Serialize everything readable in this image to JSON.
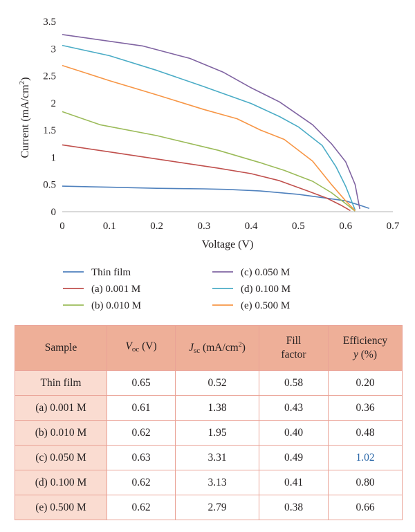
{
  "chart_data": {
    "type": "line",
    "xlabel": "Voltage (V)",
    "ylabel": "Current (mA/cm",
    "ylabel_sup": "2",
    "ylabel_close": ")",
    "xlim": [
      0,
      0.7
    ],
    "ylim": [
      0,
      3.5
    ],
    "xticks": [
      "0",
      "0.1",
      "0.2",
      "0.3",
      "0.4",
      "0.5",
      "0.6",
      "0.7"
    ],
    "yticks": [
      "0",
      "0.5",
      "1",
      "1.5",
      "2",
      "2.5",
      "3",
      "3.5"
    ],
    "grid": false,
    "legend_position": "bottom",
    "series": [
      {
        "name": "Thin film",
        "color": "#4f81bd",
        "points": [
          [
            0,
            0.47
          ],
          [
            0.1,
            0.45
          ],
          [
            0.2,
            0.43
          ],
          [
            0.3,
            0.42
          ],
          [
            0.35,
            0.41
          ],
          [
            0.42,
            0.38
          ],
          [
            0.5,
            0.32
          ],
          [
            0.55,
            0.26
          ],
          [
            0.6,
            0.2
          ],
          [
            0.63,
            0.12
          ],
          [
            0.65,
            0.06
          ]
        ]
      },
      {
        "name": "(a) 0.001 M",
        "color": "#c0504d",
        "points": [
          [
            0,
            1.23
          ],
          [
            0.1,
            1.1
          ],
          [
            0.2,
            0.97
          ],
          [
            0.33,
            0.8
          ],
          [
            0.4,
            0.7
          ],
          [
            0.46,
            0.57
          ],
          [
            0.52,
            0.38
          ],
          [
            0.56,
            0.25
          ],
          [
            0.59,
            0.12
          ],
          [
            0.61,
            0.02
          ]
        ]
      },
      {
        "name": "(b) 0.010 M",
        "color": "#9bbb59",
        "points": [
          [
            0,
            1.84
          ],
          [
            0.08,
            1.6
          ],
          [
            0.2,
            1.4
          ],
          [
            0.33,
            1.13
          ],
          [
            0.42,
            0.9
          ],
          [
            0.47,
            0.76
          ],
          [
            0.53,
            0.56
          ],
          [
            0.57,
            0.35
          ],
          [
            0.6,
            0.15
          ],
          [
            0.62,
            0.01
          ]
        ]
      },
      {
        "name": "(c) 0.050 M",
        "color": "#8064a2",
        "points": [
          [
            0,
            3.26
          ],
          [
            0.17,
            3.05
          ],
          [
            0.27,
            2.82
          ],
          [
            0.34,
            2.57
          ],
          [
            0.4,
            2.28
          ],
          [
            0.46,
            2.02
          ],
          [
            0.53,
            1.6
          ],
          [
            0.57,
            1.25
          ],
          [
            0.6,
            0.92
          ],
          [
            0.62,
            0.5
          ],
          [
            0.63,
            0.05
          ]
        ]
      },
      {
        "name": "(d) 0.100 M",
        "color": "#4bacc6",
        "points": [
          [
            0,
            3.06
          ],
          [
            0.1,
            2.87
          ],
          [
            0.2,
            2.6
          ],
          [
            0.3,
            2.3
          ],
          [
            0.4,
            1.99
          ],
          [
            0.46,
            1.75
          ],
          [
            0.5,
            1.56
          ],
          [
            0.55,
            1.22
          ],
          [
            0.58,
            0.82
          ],
          [
            0.6,
            0.47
          ],
          [
            0.62,
            0.03
          ]
        ]
      },
      {
        "name": "(e) 0.500 M",
        "color": "#f79646",
        "points": [
          [
            0,
            2.69
          ],
          [
            0.1,
            2.41
          ],
          [
            0.2,
            2.15
          ],
          [
            0.3,
            1.88
          ],
          [
            0.37,
            1.71
          ],
          [
            0.42,
            1.5
          ],
          [
            0.47,
            1.33
          ],
          [
            0.53,
            0.93
          ],
          [
            0.57,
            0.5
          ],
          [
            0.6,
            0.2
          ],
          [
            0.62,
            0.02
          ]
        ]
      }
    ]
  },
  "table": {
    "header": {
      "sample": "Sample",
      "voc_sym": "V",
      "voc_sub": "oc",
      "voc_unit": " (V)",
      "jsc_sym": "J",
      "jsc_sub": "sc",
      "jsc_unit": " (mA/cm",
      "jsc_sup": "2",
      "jsc_close": ")",
      "ff_line1": "Fill",
      "ff_line2": "factor",
      "eff_line1": "Efficiency",
      "eff_sym": "y",
      "eff_unit": " (%)"
    },
    "rows": [
      {
        "sample": "Thin film",
        "voc": "0.65",
        "jsc": "0.52",
        "ff": "0.58",
        "eff": "0.20"
      },
      {
        "sample": "(a) 0.001 M",
        "voc": "0.61",
        "jsc": "1.38",
        "ff": "0.43",
        "eff": "0.36"
      },
      {
        "sample": "(b) 0.010 M",
        "voc": "0.62",
        "jsc": "1.95",
        "ff": "0.40",
        "eff": "0.48"
      },
      {
        "sample": "(c) 0.050 M",
        "voc": "0.63",
        "jsc": "3.31",
        "ff": "0.49",
        "eff": "1.02"
      },
      {
        "sample": "(d) 0.100 M",
        "voc": "0.62",
        "jsc": "3.13",
        "ff": "0.41",
        "eff": "0.80"
      },
      {
        "sample": "(e) 0.500 M",
        "voc": "0.62",
        "jsc": "2.79",
        "ff": "0.38",
        "eff": "0.66"
      }
    ]
  }
}
